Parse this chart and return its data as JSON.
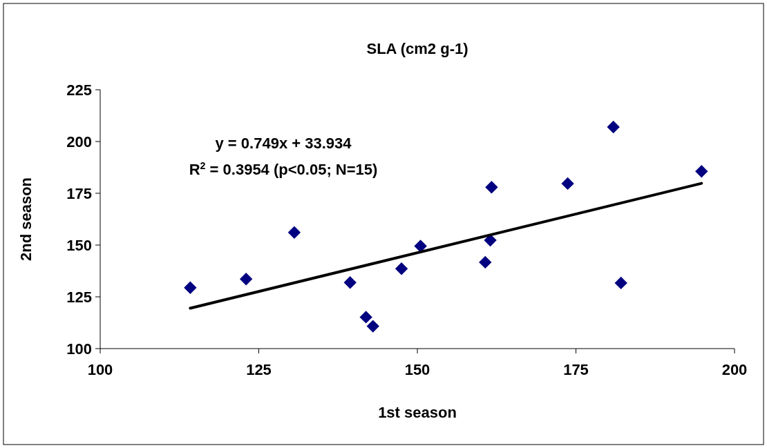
{
  "chart_data": {
    "type": "scatter",
    "title": "SLA (cm2 g-1)",
    "xlabel": "1st season",
    "ylabel": "2nd season",
    "xlim": [
      100,
      200
    ],
    "xticks": [
      100,
      125,
      150,
      175,
      200
    ],
    "ylim": [
      100,
      225
    ],
    "yticks": [
      100,
      125,
      150,
      175,
      200,
      225
    ],
    "grid": false,
    "marker": "diamond",
    "annotations": [
      "y = 0.749x + 33.934",
      "R$^{2}$ = 0.3954 (p<0.05; N=15)"
    ],
    "series": [
      {
        "color": "#000080",
        "x": [
          114.2,
          123.0,
          130.6,
          139.4,
          141.9,
          143.0,
          147.5,
          150.5,
          160.7,
          161.5,
          161.7,
          173.7,
          180.9,
          182.1,
          194.8
        ],
        "values": [
          129.4,
          133.6,
          156.1,
          131.9,
          115.2,
          110.8,
          138.6,
          149.5,
          141.7,
          152.3,
          177.9,
          179.7,
          207,
          131.7,
          185.6
        ]
      },
      {
        "type": "line",
        "color": "#000000",
        "marker": "none",
        "line_style": "solid",
        "x": [
          114.2,
          194.8
        ],
        "values": [
          119.5,
          179.8
        ]
      }
    ]
  }
}
